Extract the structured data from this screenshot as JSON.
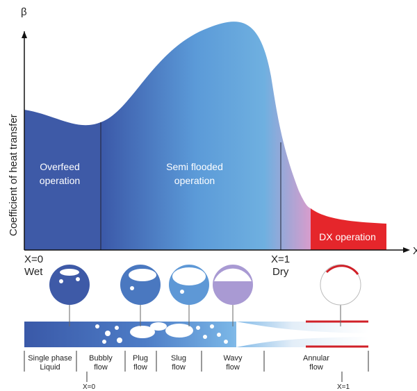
{
  "axes": {
    "y_symbol": "β",
    "y_label": "Coefficient of heat transfer",
    "x_symbol": "X"
  },
  "regions": [
    {
      "label": [
        "Overfeed",
        "operation"
      ]
    },
    {
      "label": [
        "Semi flooded",
        "operation"
      ]
    },
    {
      "label": [
        "DX operation"
      ]
    }
  ],
  "markers": [
    {
      "label": [
        "X=0",
        "Wet"
      ]
    },
    {
      "label": [
        "X=1",
        "Dry"
      ]
    }
  ],
  "flow_patterns": [
    {
      "label": [
        "Single phase",
        "Liquid"
      ]
    },
    {
      "label": [
        "Bubbly",
        "flow"
      ]
    },
    {
      "label": [
        "Plug",
        "flow"
      ]
    },
    {
      "label": [
        "Slug",
        "flow"
      ]
    },
    {
      "label": [
        "Wavy",
        "flow"
      ]
    },
    {
      "label": [
        "Annular",
        "flow"
      ]
    }
  ],
  "bottom_markers": [
    "X=0",
    "X=1"
  ]
}
